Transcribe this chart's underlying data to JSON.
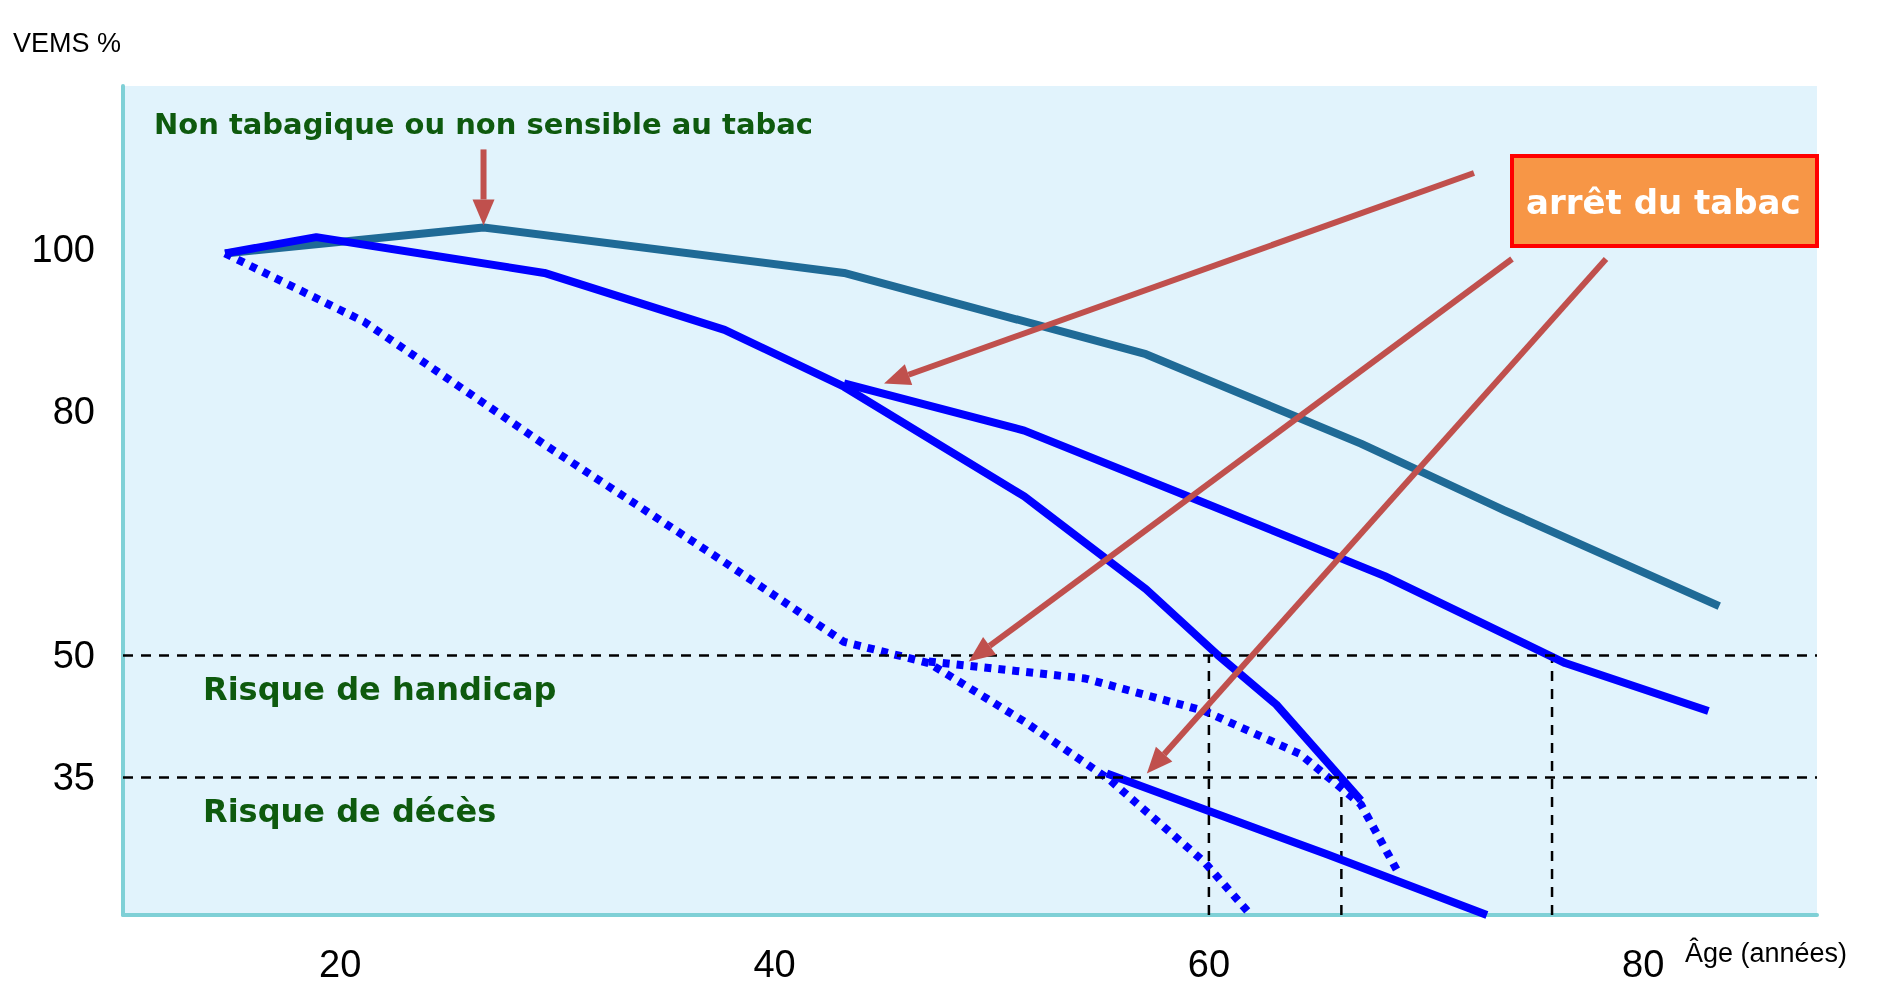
{
  "chart_data": {
    "type": "line",
    "xlabel": "Âge (années)",
    "ylabel": "VEMS %",
    "xlim": [
      10,
      88
    ],
    "xticks": [
      20,
      40,
      60,
      80
    ],
    "ylim": [
      18,
      120
    ],
    "yticks": [
      35,
      50,
      80,
      100
    ],
    "grid": false,
    "marker": "none",
    "series": [
      {
        "color": "#1f6a96",
        "line_style": "solid",
        "x": [
          14.7,
          26.6,
          43.2,
          57.1,
          67.0,
          73.6,
          83.5
        ],
        "values": [
          99.4,
          102.6,
          97,
          87,
          76,
          67.8,
          56
        ]
      },
      {
        "color": "#0000ff",
        "line_style": "solid",
        "x": [
          14.7,
          18.9,
          29.4,
          37.7,
          43.2,
          51.5,
          57.1,
          60.4,
          63.1,
          67.0
        ],
        "values": [
          99.4,
          101.4,
          97,
          90,
          83,
          69.5,
          58.1,
          50,
          43.9,
          32.1
        ]
      },
      {
        "color": "#0000ff",
        "line_style": "dotted",
        "x": [
          14.7,
          21.1,
          29.4,
          37.7,
          43.2,
          47.1,
          51.5,
          55.4,
          59.8,
          61.8
        ],
        "values": [
          99.4,
          91,
          75.9,
          61.4,
          51.6,
          49,
          41.8,
          34.7,
          24.5,
          18.4
        ]
      },
      {
        "color": "#0000ff",
        "line_style": "solid",
        "x": [
          43.2,
          51.5,
          59.8,
          68.1,
          76.4,
          83.0
        ],
        "values": [
          83.4,
          77.6,
          68.7,
          59.7,
          49,
          43.1
        ]
      },
      {
        "color": "#0000ff",
        "line_style": "dotted",
        "x": [
          47.1,
          54.3,
          59.8,
          64.2,
          67.0,
          68.7
        ],
        "values": [
          49.2,
          47.1,
          43.1,
          37.8,
          31.6,
          23.3
        ]
      },
      {
        "color": "#0000ff",
        "line_style": "solid",
        "x": [
          55.3,
          65.4,
          72.8
        ],
        "values": [
          35.4,
          25.5,
          18
        ]
      },
      {
        "color": "#000000",
        "line_style": "dashed",
        "x": [
          60,
          60
        ],
        "values": [
          18,
          50
        ]
      },
      {
        "color": "#000000",
        "line_style": "dashed",
        "x": [
          66.1,
          66.1
        ],
        "values": [
          18,
          35
        ]
      },
      {
        "color": "#000000",
        "line_style": "dashed",
        "x": [
          75.8,
          75.8
        ],
        "values": [
          18,
          50
        ]
      }
    ],
    "ref_lines": [
      {
        "axis": "y",
        "value": 50,
        "label": "Risque de handicap",
        "color": "#000000",
        "line_style": "dashed"
      },
      {
        "axis": "y",
        "value": 35,
        "label": "Risque de décès",
        "color": "#000000",
        "line_style": "dashed"
      }
    ],
    "annotations": [
      "Non tabagique ou non sensible au tabac",
      "arrêt du tabac"
    ]
  }
}
